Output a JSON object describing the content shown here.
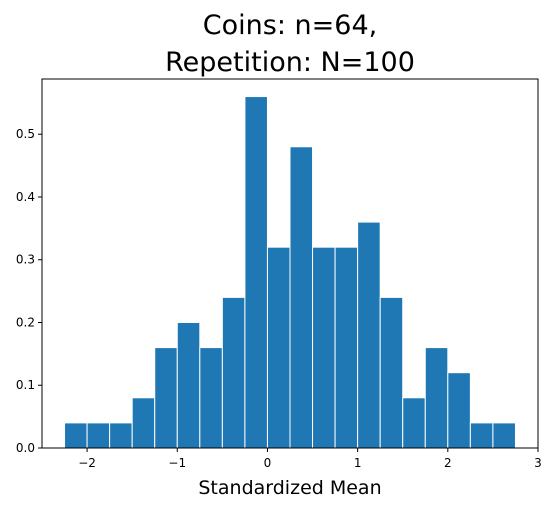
{
  "chart_data": {
    "type": "bar",
    "title_lines": [
      "Coins: n=64,",
      "Repetition: N=100"
    ],
    "xlabel": "Standardized Mean",
    "ylabel": "",
    "xlim": [
      -2.5,
      3.0
    ],
    "ylim": [
      0.0,
      0.588
    ],
    "x_ticks": [
      -2,
      -1,
      0,
      1,
      2,
      3
    ],
    "x_tick_labels": [
      "−2",
      "−1",
      "0",
      "1",
      "2",
      "3"
    ],
    "y_ticks": [
      0.0,
      0.1,
      0.2,
      0.3,
      0.4,
      0.5
    ],
    "y_tick_labels": [
      "0.0",
      "0.1",
      "0.2",
      "0.3",
      "0.4",
      "0.5"
    ],
    "bin_edges": [
      -2.25,
      -2.0,
      -1.75,
      -1.5,
      -1.25,
      -1.0,
      -0.75,
      -0.5,
      -0.25,
      0.0,
      0.25,
      0.5,
      0.75,
      1.0,
      1.25,
      1.5,
      1.75,
      2.0,
      2.25,
      2.5,
      2.75
    ],
    "values": [
      0.04,
      0.04,
      0.04,
      0.08,
      0.16,
      0.2,
      0.16,
      0.24,
      0.56,
      0.32,
      0.48,
      0.32,
      0.32,
      0.36,
      0.24,
      0.08,
      0.16,
      0.12,
      0.04,
      0.04
    ],
    "bar_color": "#1f77b4",
    "edge_color": "#ffffff",
    "grid": false
  }
}
